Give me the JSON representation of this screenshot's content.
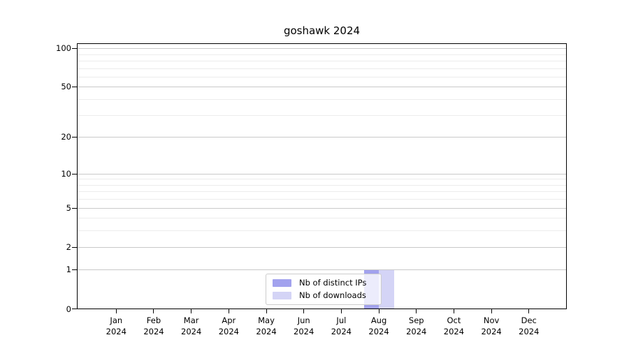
{
  "chart_data": {
    "type": "bar",
    "title": "goshawk 2024",
    "categories": [
      "Jan 2024",
      "Feb 2024",
      "Mar 2024",
      "Apr 2024",
      "May 2024",
      "Jun 2024",
      "Jul 2024",
      "Aug 2024",
      "Sep 2024",
      "Oct 2024",
      "Nov 2024",
      "Dec 2024"
    ],
    "series": [
      {
        "name": "Nb of distinct IPs",
        "color": "#a2a2ee",
        "values": [
          0,
          0,
          0,
          0,
          0,
          0,
          0,
          1,
          0,
          0,
          0,
          0
        ]
      },
      {
        "name": "Nb of downloads",
        "color": "#d4d4f6",
        "values": [
          0,
          0,
          0,
          0,
          0,
          0,
          0,
          1,
          0,
          0,
          0,
          0
        ]
      }
    ],
    "xlabel": "",
    "ylabel": "",
    "yscale": "log1p",
    "ylim": [
      0,
      110
    ],
    "y_major_ticks": [
      0,
      1,
      2,
      5,
      10,
      20,
      50,
      100
    ],
    "y_minor_gridlines": [
      3,
      4,
      6,
      7,
      8,
      9,
      30,
      40,
      60,
      70,
      80,
      90
    ],
    "grid": "horizontal",
    "legend_position": "bottom-center"
  },
  "colors": {
    "background": "#ffffff",
    "axis": "#000000",
    "major_grid": "#c9c9c9",
    "minor_grid": "#ececec",
    "legend_border": "#cccccc",
    "text": "#000000"
  }
}
